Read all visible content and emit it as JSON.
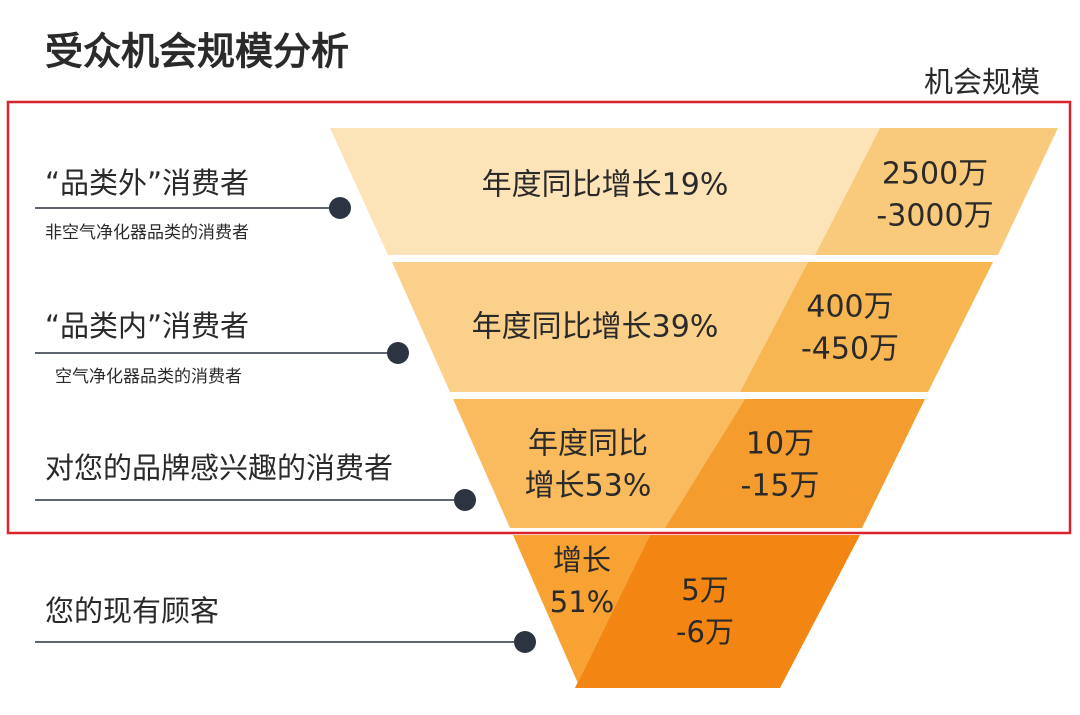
{
  "header": {
    "title": "受众机会规模分析",
    "column_header": "机会规模"
  },
  "segments": [
    {
      "label": "“品类外”消费者",
      "sublabel": "非空气净化器品类的消费者",
      "growth_lines": [
        "年度同比增长19%"
      ],
      "size_lines": [
        "2500万",
        "-3000万"
      ]
    },
    {
      "label": "“品类内”消费者",
      "sublabel": "空气净化器品类的消费者",
      "growth_lines": [
        "年度同比增长39%"
      ],
      "size_lines": [
        "400万",
        "-450万"
      ]
    },
    {
      "label": "对您的品牌感兴趣的消费者",
      "growth_lines": [
        "年度同比",
        "增长53%"
      ],
      "size_lines": [
        "10万",
        "-15万"
      ]
    },
    {
      "label": "您的现有顾客",
      "growth_lines": [
        "增长",
        "51%"
      ],
      "size_lines": [
        "5万",
        "-6万"
      ]
    }
  ]
}
